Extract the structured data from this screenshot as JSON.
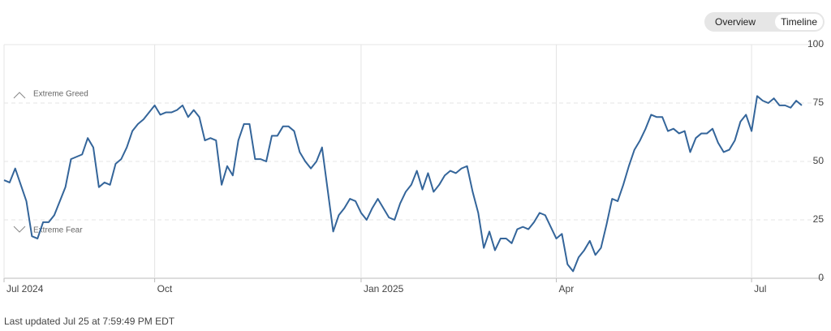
{
  "toggle": [
    "Overview",
    "Timeline"
  ],
  "footer": "Last updated Jul 25 at 7:59:49 PM EDT",
  "chart_data": {
    "type": "line",
    "annotations": [
      "Extreme Greed",
      "Extreme Fear"
    ],
    "series": [
      {
        "name": "Fear & Greed Index",
        "color": "#34659a",
        "values": [
          42,
          41,
          47,
          40,
          33,
          18,
          17,
          24,
          24,
          27,
          33,
          39,
          51,
          52,
          53,
          60,
          56,
          39,
          41,
          40,
          49,
          51,
          56,
          63,
          66,
          68,
          71,
          74,
          70,
          71,
          71,
          72,
          74,
          69,
          72,
          69,
          59,
          60,
          59,
          40,
          48,
          44,
          59,
          66,
          66,
          51,
          51,
          50,
          61,
          61,
          65,
          65,
          63,
          54,
          50,
          47,
          50,
          56,
          38,
          20,
          27,
          30,
          34,
          33,
          28,
          25,
          30,
          34,
          30,
          26,
          25,
          32,
          37,
          40,
          46,
          38,
          45,
          37,
          40,
          44,
          46,
          45,
          47,
          48,
          37,
          28,
          13,
          20,
          12,
          17,
          17,
          15,
          21,
          22,
          21,
          24,
          28,
          27,
          22,
          17,
          19,
          6,
          3,
          9,
          12,
          16,
          10,
          13,
          23,
          34,
          33,
          40,
          48,
          55,
          59,
          64,
          70,
          69,
          69,
          63,
          64,
          62,
          63,
          54,
          60,
          62,
          62,
          64,
          58,
          54,
          55,
          59,
          67,
          70,
          63,
          78,
          76,
          75,
          77,
          74,
          74,
          73,
          76,
          74
        ]
      }
    ],
    "xlim": [
      0,
      143
    ],
    "xticks": [
      {
        "value": 0,
        "label": "Jul 2024"
      },
      {
        "value": 27,
        "label": "Oct"
      },
      {
        "value": 64,
        "label": "Jan 2025"
      },
      {
        "value": 99,
        "label": "Apr"
      },
      {
        "value": 134,
        "label": "Jul"
      }
    ],
    "ylim": [
      0,
      100
    ],
    "yticks": [
      0,
      25,
      50,
      75,
      100
    ],
    "grid": true
  }
}
